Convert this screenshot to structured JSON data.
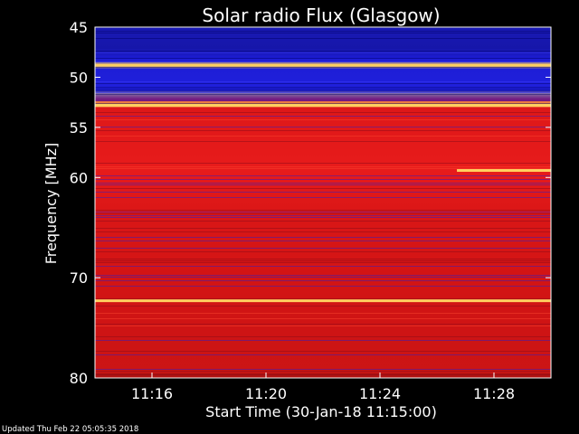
{
  "chart_data": {
    "type": "heatmap",
    "title": "Solar radio Flux (Glasgow)",
    "xlabel": "Start Time (30-Jan-18 11:15:00)",
    "ylabel": "Frequency [MHz]",
    "x_axis": {
      "unit": "time",
      "range": [
        "11:14:30",
        "11:30:30"
      ],
      "tick_labels": [
        "11:16",
        "11:20",
        "11:24",
        "11:28"
      ],
      "tick_values_min": [
        1.5,
        5.5,
        9.5,
        13.5
      ]
    },
    "y_axis": {
      "unit": "MHz",
      "range": [
        45,
        80
      ],
      "inverted": true,
      "tick_values": [
        45,
        50,
        55,
        60,
        70,
        80
      ]
    },
    "colors": {
      "high": "#ffd060",
      "mid": "#e01818",
      "low": "#2020d8",
      "dark": "#000060"
    },
    "bands": [
      {
        "from": 45.0,
        "to": 48.5,
        "level": "low"
      },
      {
        "from": 48.5,
        "to": 49.1,
        "level": "high"
      },
      {
        "from": 49.1,
        "to": 52.4,
        "level": "low"
      },
      {
        "from": 52.4,
        "to": 53.0,
        "level": "high"
      },
      {
        "from": 53.0,
        "to": 79.5,
        "level": "mid"
      }
    ],
    "lines": [
      {
        "freq": 48.8,
        "level": "high"
      },
      {
        "freq": 52.8,
        "level": "high"
      },
      {
        "freq": 59.3,
        "level": "high",
        "start_min": 12.2
      },
      {
        "freq": 72.3,
        "level": "high"
      }
    ],
    "footer": "Updated Thu Feb 22 05:05:35 2018"
  }
}
